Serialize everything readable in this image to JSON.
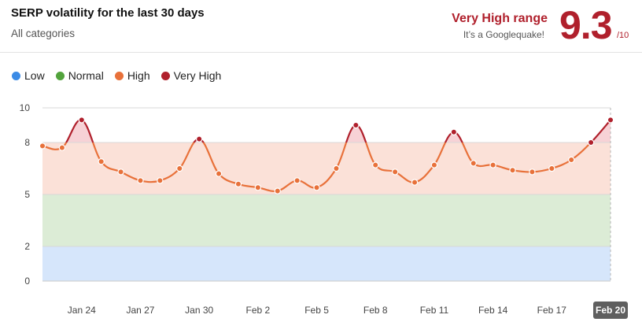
{
  "header": {
    "title": "SERP volatility for the last 30 days",
    "subtitle": "All categories",
    "range_label": "Very High range",
    "range_note": "It’s a Googlequake!",
    "score": "9.3",
    "score_max": "/10"
  },
  "legend": [
    {
      "name": "Low",
      "color": "#3b8be6"
    },
    {
      "name": "Normal",
      "color": "#52a33c"
    },
    {
      "name": "High",
      "color": "#e8713a"
    },
    {
      "name": "Very High",
      "color": "#b0202c"
    }
  ],
  "chart_data": {
    "type": "line",
    "ylim": [
      0,
      10
    ],
    "y_ticks": [
      0,
      2,
      5,
      8,
      10
    ],
    "bands": [
      {
        "name": "Low",
        "from": 0,
        "to": 2,
        "color": "#d6e6fb"
      },
      {
        "name": "Normal",
        "from": 2,
        "to": 5,
        "color": "#dcecd6"
      },
      {
        "name": "High",
        "from": 5,
        "to": 8,
        "color": "#fbe1d8"
      },
      {
        "name": "Very High",
        "from": 8,
        "to": 10,
        "color": "#f7d2d6"
      }
    ],
    "x_labels": [
      "Jan 24",
      "Jan 27",
      "Jan 30",
      "Feb 2",
      "Feb 5",
      "Feb 8",
      "Feb 11",
      "Feb 14",
      "Feb 17"
    ],
    "x_label_indices": [
      2,
      5,
      8,
      11,
      14,
      17,
      20,
      23,
      26
    ],
    "last_label": "Feb 20",
    "x": [
      "Jan 22",
      "Jan 23",
      "Jan 24",
      "Jan 25",
      "Jan 26",
      "Jan 27",
      "Jan 28",
      "Jan 29",
      "Jan 30",
      "Jan 31",
      "Feb 1",
      "Feb 2",
      "Feb 3",
      "Feb 4",
      "Feb 5",
      "Feb 6",
      "Feb 7",
      "Feb 8",
      "Feb 9",
      "Feb 10",
      "Feb 11",
      "Feb 12",
      "Feb 13",
      "Feb 14",
      "Feb 15",
      "Feb 16",
      "Feb 17",
      "Feb 18",
      "Feb 19",
      "Feb 20"
    ],
    "values": [
      7.8,
      7.7,
      9.3,
      6.9,
      6.3,
      5.8,
      5.8,
      6.5,
      8.2,
      6.2,
      5.6,
      5.4,
      5.2,
      5.8,
      5.4,
      6.5,
      9.0,
      6.7,
      6.3,
      5.7,
      6.7,
      8.6,
      6.8,
      6.7,
      6.4,
      6.3,
      6.5,
      7.0,
      8.0,
      9.3
    ],
    "line_color_high": "#e8713a",
    "line_color_very_high": "#b0202c"
  }
}
